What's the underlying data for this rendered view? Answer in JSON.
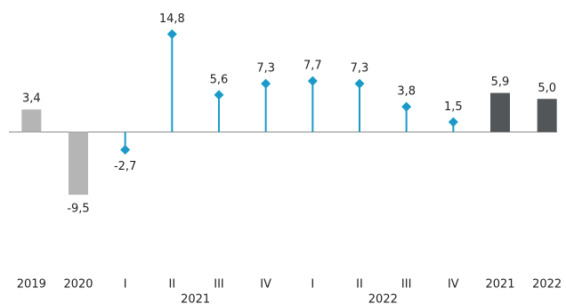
{
  "chart_data": {
    "type": "bar",
    "categories": [
      "2019",
      "2020",
      "I",
      "II",
      "III",
      "IV",
      "I",
      "II",
      "III",
      "IV",
      "2021",
      "2022"
    ],
    "groups": [
      {
        "label": "2021",
        "first": 2,
        "last": 5
      },
      {
        "label": "2022",
        "first": 6,
        "last": 9
      }
    ],
    "ylim": [
      -15,
      17
    ],
    "series": [
      {
        "kind": "bar",
        "color": "#b5b5b5",
        "values": [
          3.4,
          -9.5,
          null,
          null,
          null,
          null,
          null,
          null,
          null,
          null,
          null,
          null
        ],
        "value_labels": [
          "3,4",
          "-9,5",
          null,
          null,
          null,
          null,
          null,
          null,
          null,
          null,
          null,
          null
        ]
      },
      {
        "kind": "lollipop",
        "color": "#1b9ac9",
        "values": [
          null,
          null,
          -2.7,
          14.8,
          5.6,
          7.3,
          7.7,
          7.3,
          3.8,
          1.5,
          null,
          null
        ],
        "value_labels": [
          null,
          null,
          "-2,7",
          "14,8",
          "5,6",
          "7,3",
          "7,7",
          "7,3",
          "3,8",
          "1,5",
          null,
          null
        ]
      },
      {
        "kind": "bar",
        "color": "#535659",
        "values": [
          null,
          null,
          null,
          null,
          null,
          null,
          null,
          null,
          null,
          null,
          5.9,
          5.0
        ],
        "value_labels": [
          null,
          null,
          null,
          null,
          null,
          null,
          null,
          null,
          null,
          null,
          "5,9",
          "5,0"
        ]
      }
    ]
  }
}
